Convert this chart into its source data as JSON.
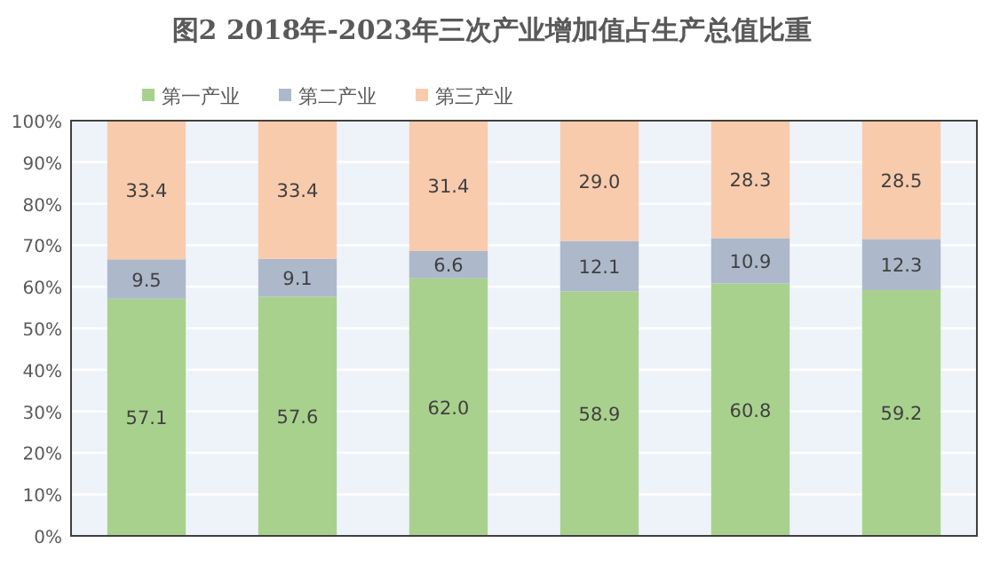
{
  "chart_data": {
    "type": "bar",
    "title": "图2  2018年-2023年三次产业增加值占生产总值比重",
    "categories": [
      null,
      null,
      null,
      null,
      null,
      null
    ],
    "stacked": true,
    "legend": "top",
    "grid": "y",
    "ylim": [
      0,
      100
    ],
    "yticks": [
      {
        "value": 0,
        "label": "0%"
      },
      {
        "value": 10,
        "label": "10%"
      },
      {
        "value": 20,
        "label": "20%"
      },
      {
        "value": 30,
        "label": "30%"
      },
      {
        "value": 40,
        "label": "40%"
      },
      {
        "value": 50,
        "label": "50%"
      },
      {
        "value": 60,
        "label": "60%"
      },
      {
        "value": 70,
        "label": "70%"
      },
      {
        "value": 80,
        "label": "80%"
      },
      {
        "value": 90,
        "label": "90%"
      },
      {
        "value": 100,
        "label": "100%"
      }
    ],
    "series": [
      {
        "name": "第一产业",
        "color": "#a9d18e",
        "values": [
          57.1,
          57.6,
          62.0,
          58.9,
          60.8,
          59.2
        ],
        "value_labels": [
          "57.1",
          "57.6",
          "62.0",
          "58.9",
          "60.8",
          "59.2"
        ]
      },
      {
        "name": "第二产业",
        "color": "#adb9ca",
        "values": [
          9.5,
          9.1,
          6.6,
          12.1,
          10.9,
          12.3
        ],
        "value_labels": [
          "9.5",
          "9.1",
          "6.6",
          "12.1",
          "10.9",
          "12.3"
        ]
      },
      {
        "name": "第三产业",
        "color": "#f8cbad",
        "values": [
          33.4,
          33.4,
          31.4,
          29.0,
          28.3,
          28.5
        ],
        "value_labels": [
          "33.4",
          "33.4",
          "31.4",
          "29.0",
          "28.3",
          "28.5"
        ]
      }
    ]
  }
}
